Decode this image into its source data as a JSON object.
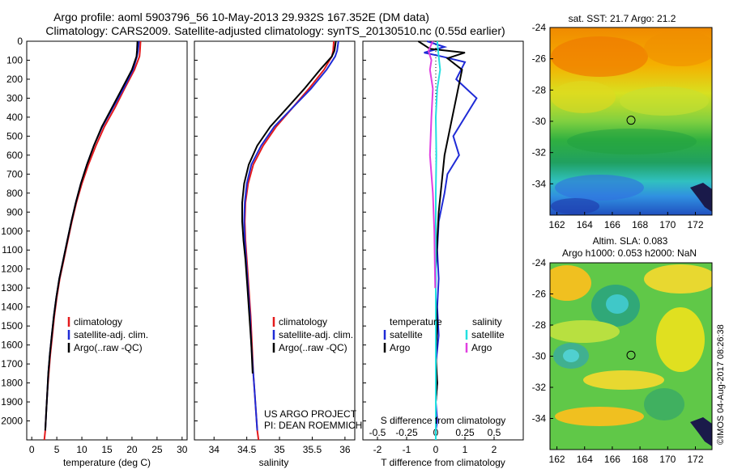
{
  "header": {
    "title_line1": "Argo profile: aoml 5903796_56 10-May-2013 29.932S 167.352E (DM data)",
    "title_line2": "Climatology: CARS2009. Satellite-adjusted climatology: synTS_20130510.nc (0.55d earlier)"
  },
  "colors": {
    "climatology": "#e41a1c",
    "satellite": "#1f2bd6",
    "argo": "#000000",
    "salinity_satellite": "#22e0e0",
    "salinity_argo": "#e040e0"
  },
  "credits": {
    "project": "US ARGO PROJECT",
    "pi": "PI: DEAN ROEMMICH",
    "imos": "©IMOS 04-Aug-2017 08:26:38"
  },
  "chart_data": [
    {
      "type": "line",
      "panel": "temperature",
      "xlabel": "temperature (deg C)",
      "ylabel": "",
      "xlim": [
        -1,
        31
      ],
      "ylim": [
        2100,
        0
      ],
      "xticks": [
        0,
        5,
        10,
        15,
        20,
        25,
        30
      ],
      "yticks": [
        0,
        100,
        200,
        300,
        400,
        500,
        600,
        700,
        800,
        900,
        1000,
        1100,
        1200,
        1300,
        1400,
        1500,
        1600,
        1700,
        1800,
        1900,
        2000
      ],
      "legend": [
        "climatology",
        "satellite-adj. clim.",
        "Argo(..raw -QC)"
      ],
      "series": [
        {
          "name": "climatology",
          "color": "#e41a1c",
          "x": [
            21.7,
            21.6,
            21.5,
            20.5,
            18.5,
            16.6,
            14.5,
            12.8,
            11.3,
            10.0,
            8.9,
            8.0,
            7.2,
            6.4,
            5.6,
            5.0,
            4.5,
            4.1,
            3.7,
            3.4,
            3.1,
            2.9,
            2.7,
            2.5
          ],
          "y": [
            0,
            50,
            80,
            150,
            250,
            350,
            450,
            550,
            650,
            750,
            850,
            950,
            1050,
            1150,
            1250,
            1350,
            1450,
            1550,
            1650,
            1750,
            1850,
            1950,
            2050,
            2100
          ]
        },
        {
          "name": "satellite-adj. clim.",
          "color": "#1f2bd6",
          "x": [
            21.4,
            21.2,
            21.0,
            20.2,
            18.3,
            16.2,
            14.1,
            12.4,
            11.0,
            9.8,
            8.8,
            7.9,
            7.1,
            6.3,
            5.5,
            4.9,
            4.4,
            4.0,
            3.6,
            3.3,
            3.1,
            2.9,
            2.7
          ],
          "y": [
            0,
            50,
            80,
            150,
            250,
            350,
            450,
            550,
            650,
            750,
            850,
            950,
            1050,
            1150,
            1250,
            1350,
            1450,
            1550,
            1650,
            1750,
            1850,
            1950,
            2050
          ]
        },
        {
          "name": "Argo(..raw -QC)",
          "color": "#000000",
          "x": [
            21.1,
            21.0,
            20.9,
            20.0,
            18.0,
            16.0,
            14.0,
            12.4,
            11.0,
            9.8,
            8.8,
            7.9,
            7.1,
            6.3,
            5.5,
            4.9,
            4.4,
            4.0,
            3.6,
            3.3,
            3.1,
            2.9,
            2.7
          ],
          "y": [
            0,
            50,
            80,
            150,
            250,
            350,
            450,
            550,
            650,
            750,
            850,
            950,
            1050,
            1150,
            1250,
            1350,
            1450,
            1550,
            1650,
            1750,
            1850,
            1950,
            2050
          ]
        }
      ]
    },
    {
      "type": "line",
      "panel": "salinity",
      "xlabel": "salinity",
      "xlim": [
        33.7,
        36.15
      ],
      "ylim": [
        2100,
        0
      ],
      "xticks": [
        34,
        34.5,
        35,
        35.5,
        36
      ],
      "xtick_labels": [
        "34",
        "34.5",
        "35",
        "35.5",
        "36"
      ],
      "legend": [
        "climatology",
        "satellite-adj. clim.",
        "Argo(..raw -QC)"
      ],
      "series": [
        {
          "name": "climatology",
          "color": "#e41a1c",
          "x": [
            35.83,
            35.82,
            35.8,
            35.68,
            35.45,
            35.2,
            34.95,
            34.75,
            34.6,
            34.52,
            34.48,
            34.47,
            34.48,
            34.5,
            34.53,
            34.56,
            34.58,
            34.6,
            34.62,
            34.64,
            34.66,
            34.68
          ],
          "y": [
            0,
            50,
            80,
            150,
            250,
            350,
            450,
            550,
            650,
            750,
            850,
            950,
            1050,
            1150,
            1300,
            1450,
            1600,
            1750,
            1850,
            1950,
            2050,
            2100
          ]
        },
        {
          "name": "satellite-adj. clim.",
          "color": "#1f2bd6",
          "x": [
            35.9,
            35.88,
            35.85,
            35.72,
            35.48,
            35.2,
            34.92,
            34.72,
            34.57,
            34.5,
            34.47,
            34.46,
            34.47,
            34.49,
            34.52,
            34.55,
            34.57,
            34.6,
            34.62,
            34.64,
            34.66
          ],
          "y": [
            0,
            50,
            80,
            150,
            250,
            350,
            450,
            550,
            650,
            750,
            850,
            950,
            1050,
            1150,
            1300,
            1450,
            1600,
            1750,
            1850,
            1950,
            2050
          ]
        },
        {
          "name": "Argo(..raw -QC)",
          "color": "#000000",
          "x": [
            35.86,
            35.84,
            35.8,
            35.62,
            35.38,
            35.12,
            34.86,
            34.66,
            34.53,
            34.46,
            34.43,
            34.43,
            34.45,
            34.48,
            34.51,
            34.54,
            34.57,
            34.59
          ],
          "y": [
            0,
            50,
            80,
            150,
            250,
            350,
            450,
            550,
            650,
            750,
            850,
            950,
            1050,
            1150,
            1300,
            1450,
            1600,
            1750
          ]
        }
      ]
    },
    {
      "type": "line",
      "panel": "differences",
      "xlabel": "T difference from climatology",
      "xlabel_top": "S difference from climatology",
      "xlim": [
        -2.5,
        3.0
      ],
      "ylim": [
        2100,
        0
      ],
      "xticks": [
        -2,
        -1,
        0,
        1,
        2
      ],
      "xtick_labels": [
        "-2",
        "-1",
        "0",
        "1",
        "2"
      ],
      "sticks_labels": [
        "-0.5",
        "-0.25",
        "0",
        "0.25",
        "0.5"
      ],
      "legend_temperature": {
        "title": "temperature",
        "items": [
          "satellite",
          "Argo"
        ]
      },
      "legend_salinity": {
        "title": "salinity",
        "items": [
          "satellite",
          "Argo"
        ]
      },
      "series": [
        {
          "name": "temperature satellite",
          "color": "#1f2bd6",
          "x": [
            -0.3,
            0.3,
            -0.4,
            0.2,
            1.0,
            0.7,
            1.4,
            1.0,
            0.6,
            0.8,
            0.4,
            0.3,
            0.1,
            0.05,
            0.1,
            0.05,
            0.1,
            0.0,
            0.05,
            0.0,
            0.05,
            0.0,
            0.0
          ],
          "y": [
            0,
            30,
            60,
            80,
            110,
            200,
            300,
            400,
            500,
            600,
            700,
            800,
            950,
            1100,
            1250,
            1400,
            1550,
            1700,
            1800,
            1900,
            2000,
            2050,
            2100
          ]
        },
        {
          "name": "temperature Argo",
          "color": "#000000",
          "x": [
            -0.6,
            -0.2,
            1.0,
            0.4,
            0.9,
            0.7,
            0.5,
            0.3,
            0.2,
            0.1,
            0.05,
            0.0,
            0.0,
            0.05,
            0.0,
            0.05,
            0.0,
            0.0
          ],
          "y": [
            0,
            40,
            60,
            90,
            150,
            300,
            450,
            600,
            750,
            900,
            1050,
            1200,
            1350,
            1500,
            1650,
            1800,
            1900,
            2000
          ]
        },
        {
          "name": "salinity satellite",
          "color": "#22e0e0",
          "x": [
            0.05,
            0.1,
            0.15,
            0.05,
            0.0,
            0.02,
            0.0,
            0.0,
            0.0,
            0.0,
            0.0,
            0.0,
            0.0,
            0.0,
            0.0
          ],
          "y": [
            0,
            80,
            150,
            250,
            400,
            600,
            800,
            1000,
            1200,
            1400,
            1600,
            1800,
            1950,
            2050,
            2100
          ]
        },
        {
          "name": "salinity Argo",
          "color": "#e040e0",
          "x": [
            -0.1,
            -0.25,
            -0.15,
            -0.2,
            -0.1,
            -0.15,
            -0.2,
            -0.1,
            -0.05,
            -0.03,
            -0.02
          ],
          "y": [
            0,
            50,
            100,
            150,
            250,
            400,
            600,
            800,
            1000,
            1200,
            1300
          ]
        }
      ]
    },
    {
      "type": "heatmap",
      "panel": "sst-map",
      "title": "sat. SST: 21.7  Argo: 21.2",
      "xlim": [
        161.5,
        173.2
      ],
      "ylim": [
        -36,
        -24
      ],
      "xticks": [
        162,
        164,
        166,
        168,
        170,
        172
      ],
      "yticks": [
        -24,
        -26,
        -28,
        -30,
        -32,
        -34
      ],
      "float_location": {
        "lon": 167.352,
        "lat": -29.932
      }
    },
    {
      "type": "heatmap",
      "panel": "sla-map",
      "title_line1": "Altim. SLA: 0.083",
      "title_line2": "Argo h1000: 0.053 h2000: NaN",
      "xlim": [
        161.5,
        173.2
      ],
      "ylim": [
        -36,
        -24
      ],
      "xticks": [
        162,
        164,
        166,
        168,
        170,
        172
      ],
      "yticks": [
        -24,
        -26,
        -28,
        -30,
        -32,
        -34
      ],
      "float_location": {
        "lon": 167.352,
        "lat": -29.932
      }
    }
  ]
}
